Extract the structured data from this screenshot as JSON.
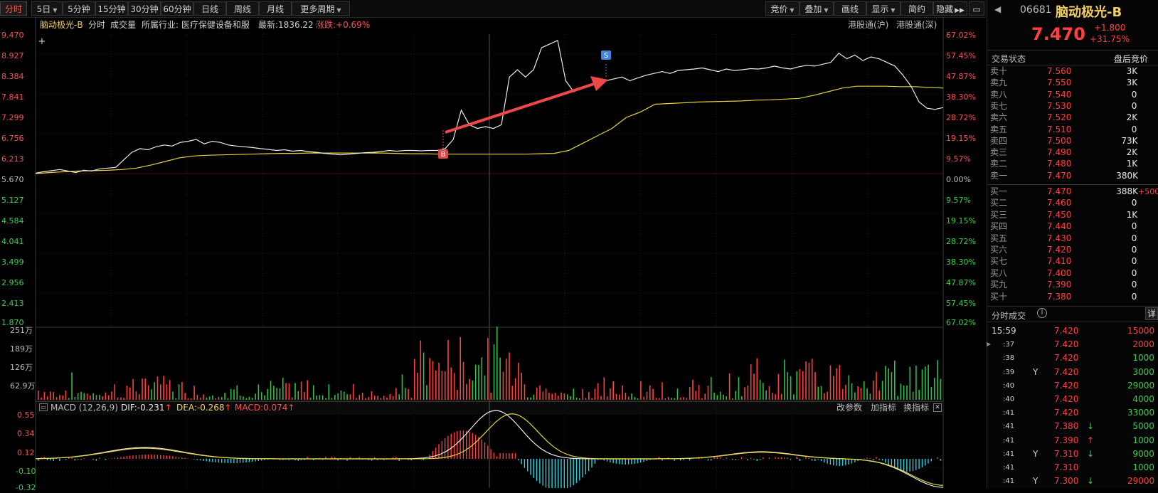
{
  "toolbar": {
    "periods": [
      "分时",
      "5日",
      "5分钟",
      "15分钟",
      "30分钟",
      "60分钟",
      "日线",
      "周线",
      "月线",
      "更多周期"
    ],
    "right_buttons": [
      "竞价",
      "叠加",
      "画线",
      "显示",
      "简约",
      "隐藏"
    ]
  },
  "info": {
    "stock_name": "脑动极光-B",
    "mode": "分时",
    "volume_label": "成交量",
    "industry": "所属行业: 医疗保健设备和服",
    "latest": "最新:1836.22",
    "change": "涨跌:+0.69%",
    "hk_sh": "港股通(沪)",
    "hk_sz": "港股通(深)"
  },
  "price_axis": [
    "9.470",
    "8.927",
    "8.384",
    "7.841",
    "7.299",
    "6.756",
    "6.213",
    "5.670",
    "5.127",
    "4.584",
    "4.041",
    "3.499",
    "2.956",
    "2.413",
    "1.870"
  ],
  "pct_axis": [
    "67.02%",
    "57.45%",
    "47.87%",
    "38.30%",
    "28.72%",
    "19.15%",
    "9.57%",
    "0.00%",
    "9.57%",
    "19.15%",
    "28.72%",
    "38.30%",
    "47.87%",
    "57.45%",
    "67.02%"
  ],
  "volume_axis": [
    "251万",
    "189万",
    "126万",
    "62.9万"
  ],
  "macd": {
    "label": "MACD (12,26,9)",
    "dif": "DIF:-0.231",
    "dea": "DEA:-0.268",
    "macd": "MACD:0.074",
    "actions": [
      "改参数",
      "加指标",
      "换指标"
    ],
    "axis": [
      "0.55",
      "0.34",
      "0.12",
      "-0.10",
      "-0.32"
    ]
  },
  "markers": {
    "buy": "B",
    "sell": "S"
  },
  "chart_data": {
    "type": "line",
    "series": [
      {
        "values": [
          5.68,
          5.72,
          5.75,
          5.78,
          5.74,
          5.7,
          5.76,
          5.74,
          5.8,
          5.82,
          5.84,
          6.05,
          6.25,
          6.35,
          6.32,
          6.4,
          6.45,
          6.42,
          6.52,
          6.55,
          6.6,
          6.48,
          6.55,
          6.52,
          6.45,
          6.42,
          6.4,
          6.38,
          6.35,
          6.33,
          6.3,
          6.32,
          6.28,
          6.3,
          6.27,
          6.25,
          6.22,
          6.2,
          6.18,
          6.2,
          6.22,
          6.24,
          6.25,
          6.27,
          6.3,
          6.28,
          6.3,
          6.3,
          6.29,
          6.3,
          6.3,
          6.35,
          6.6,
          7.4,
          7.0,
          6.9,
          6.95,
          6.9,
          7.0,
          8.3,
          8.5,
          8.3,
          8.5,
          9.1,
          9.2,
          9.3,
          8.2,
          7.9,
          8.0,
          8.1,
          8.15,
          8.2,
          8.25,
          8.3,
          8.2,
          8.28,
          8.35,
          8.4,
          8.45,
          8.4,
          8.48,
          8.5,
          8.52,
          8.55,
          8.5,
          8.45,
          8.52,
          8.48,
          8.5,
          8.53,
          8.52,
          8.55,
          8.6,
          8.55,
          8.52,
          8.58,
          8.62,
          8.6,
          8.65,
          8.7,
          8.95,
          8.8,
          8.9,
          8.75,
          8.85,
          8.8,
          8.7,
          8.6,
          8.35,
          8.05,
          7.62,
          7.45,
          7.42,
          7.47
        ]
      },
      {
        "values": [
          5.67,
          5.7,
          5.72,
          5.74,
          5.75,
          5.76,
          5.78,
          5.82,
          5.9,
          6.0,
          6.1,
          6.15,
          6.17,
          6.18,
          6.19,
          6.2,
          6.21,
          6.22,
          6.22,
          6.23,
          6.23,
          6.23,
          6.23,
          6.23,
          6.23,
          6.22,
          6.21,
          6.21,
          6.2,
          6.2,
          6.2,
          6.2,
          6.2,
          6.2,
          6.2,
          6.21,
          6.22,
          6.3,
          6.5,
          6.7,
          6.9,
          7.2,
          7.35,
          7.56,
          7.58,
          7.6,
          7.62,
          7.63,
          7.64,
          7.65,
          7.67,
          7.68,
          7.7,
          7.72,
          7.8,
          7.9,
          8.0,
          8.05,
          8.05,
          8.05,
          8.04,
          8.04,
          8.02,
          8.0
        ]
      }
    ],
    "ylim": [
      1.87,
      9.47
    ]
  }
}
